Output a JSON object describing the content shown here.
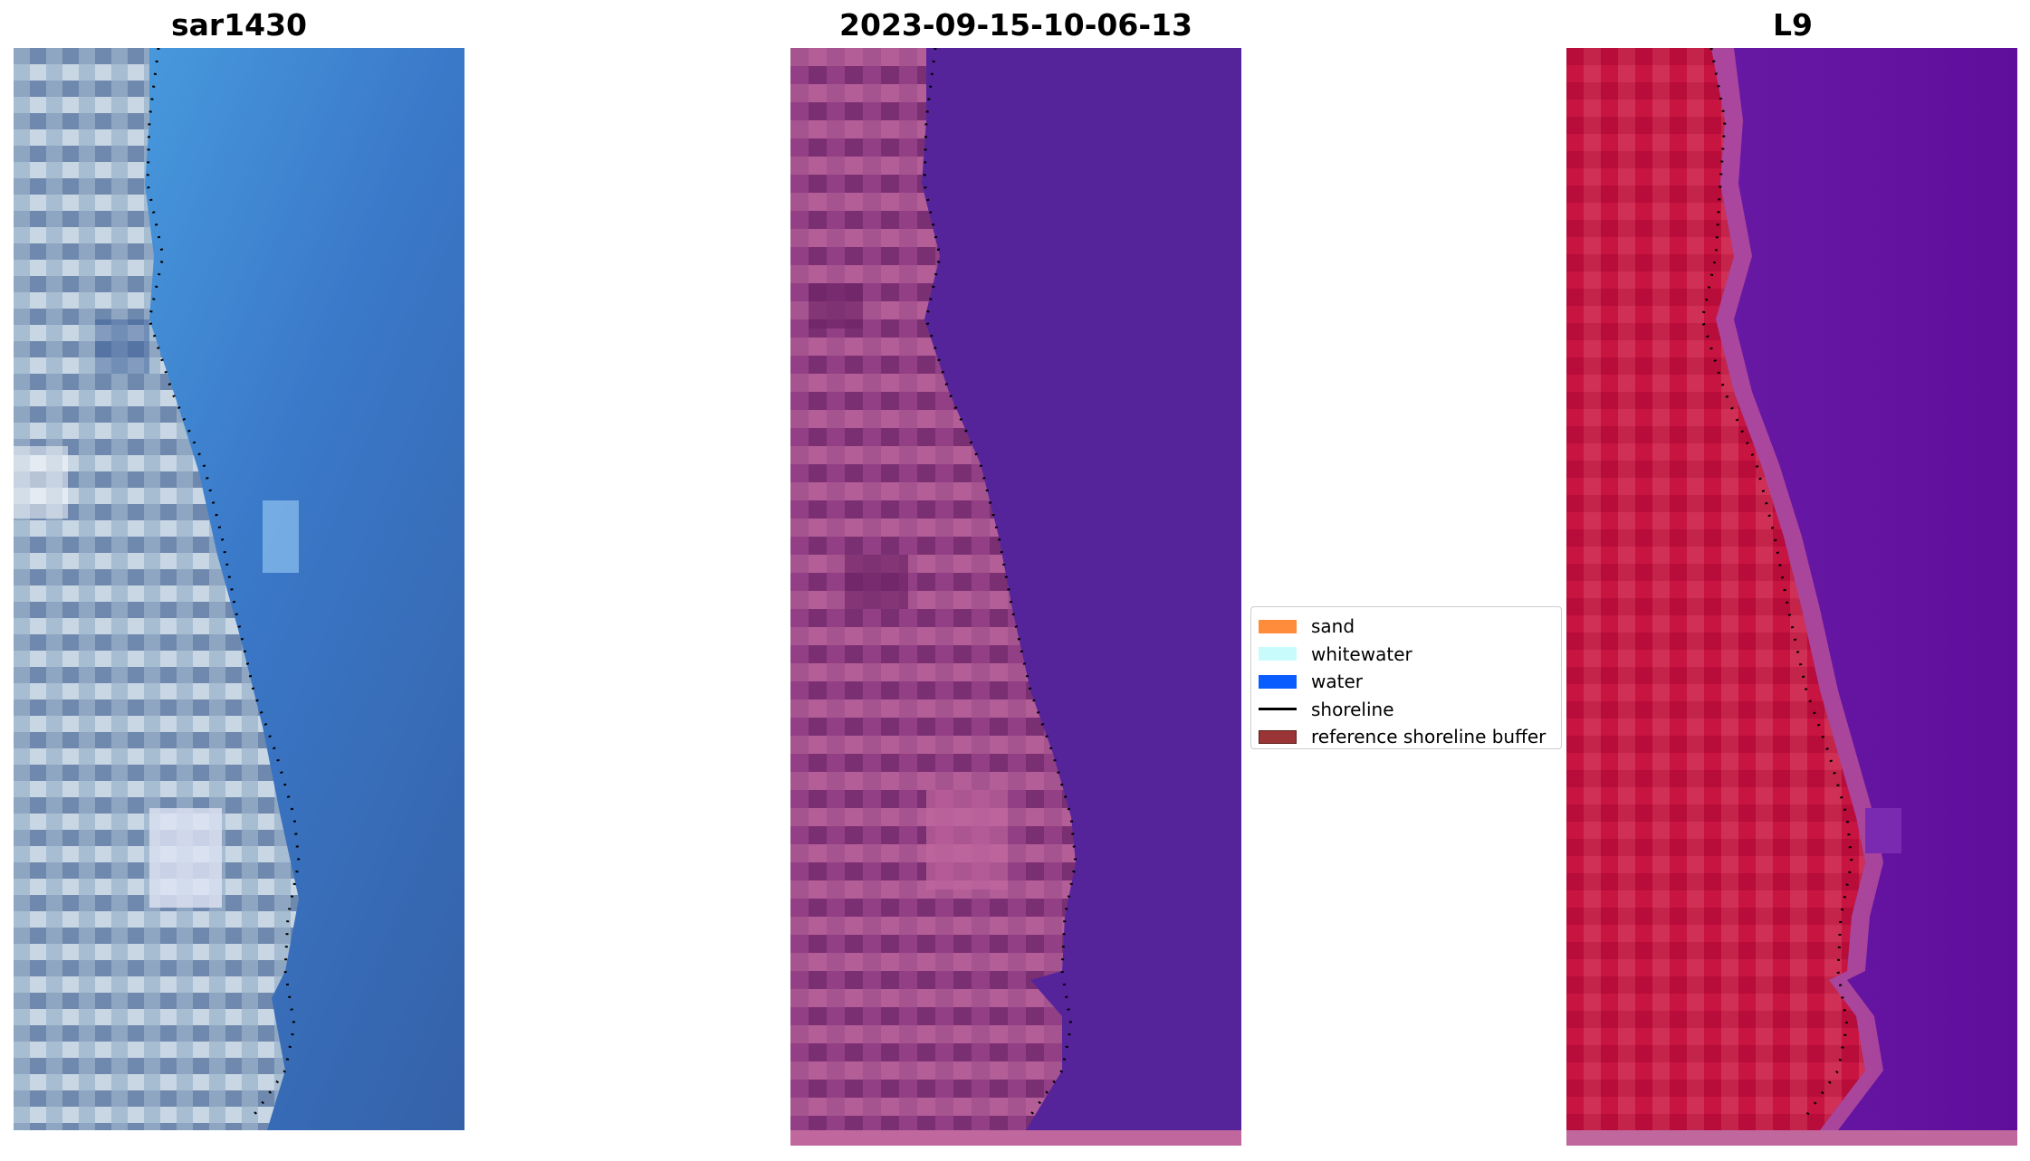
{
  "titles": {
    "panel1": "sar1430",
    "panel2": "2023-09-15-10-06-13",
    "panel3": "L9"
  },
  "legend": {
    "items": [
      {
        "label": "sand",
        "color": "#ff8c3a",
        "kind": "patch"
      },
      {
        "label": "whitewater",
        "color": "#c8fbfb",
        "kind": "patch"
      },
      {
        "label": "water",
        "color": "#0b5cff",
        "kind": "patch"
      },
      {
        "label": "shoreline",
        "color": "#000000",
        "kind": "line"
      },
      {
        "label": "reference shoreline buffer",
        "color": "#9b3535",
        "kind": "patch"
      }
    ]
  },
  "colors": {
    "rgb_land": "#9fb4cc",
    "rgb_water": "#3d77c4",
    "class_land": "#8c3f82",
    "class_water": "#55249a",
    "class_buffer": "#c0679e",
    "mndwi_land": "#c8123e",
    "mndwi_water": "#5f0e9c",
    "shoreline": "#000000"
  }
}
